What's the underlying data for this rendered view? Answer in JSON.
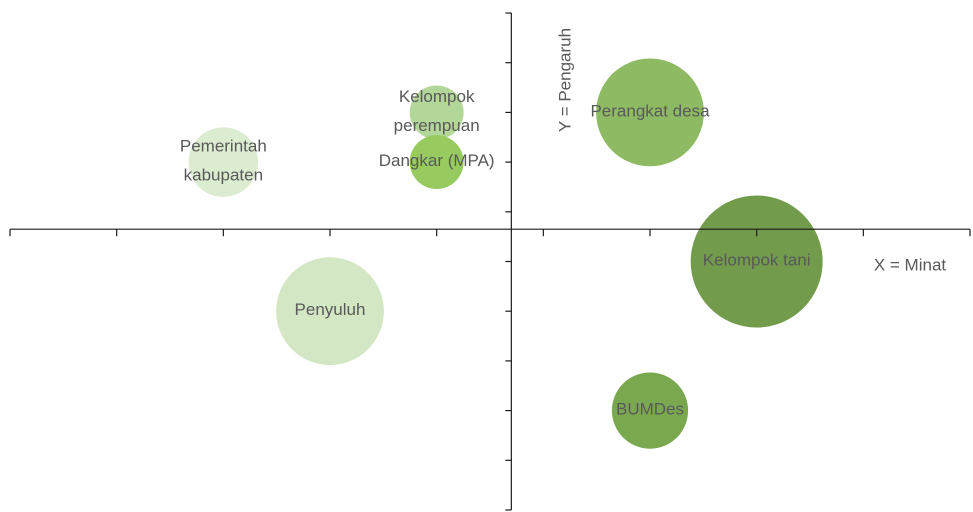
{
  "chart_data": {
    "type": "bubble",
    "x_axis_label": "X = Minat",
    "y_axis_label": "Y = Pengaruh",
    "categories": [
      "Pemerintah\nkabupaten",
      "Kelompok\nperempuan",
      "Dangkar (MPA)",
      "Perangkat desa",
      "Kelompok tani",
      "Penyuluh",
      "BUMDes"
    ],
    "x": [
      -3,
      -1,
      -1,
      1,
      2,
      -2,
      1
    ],
    "values": [
      2,
      3,
      2,
      3,
      0,
      -1,
      -3
    ],
    "sizes": [
      2.5,
      1.5,
      1.5,
      6,
      9,
      6,
      3
    ],
    "colors": [
      "#dcecd0",
      "#b3d798",
      "#97cb60",
      "#8dba62",
      "#729b4c",
      "#d3e7c4",
      "#7aa84f"
    ],
    "xlim": [
      -5,
      4
    ],
    "xticks": [
      -5,
      -4,
      -3,
      -2,
      -1,
      0,
      1,
      2,
      3,
      4
    ],
    "ylim": [
      -5,
      5
    ],
    "yticks": [
      -5,
      -4,
      -3,
      -2,
      -1,
      0,
      1,
      2,
      3,
      4,
      5
    ],
    "x_axis_at": 0.65,
    "y_axis_at": -0.3
  }
}
